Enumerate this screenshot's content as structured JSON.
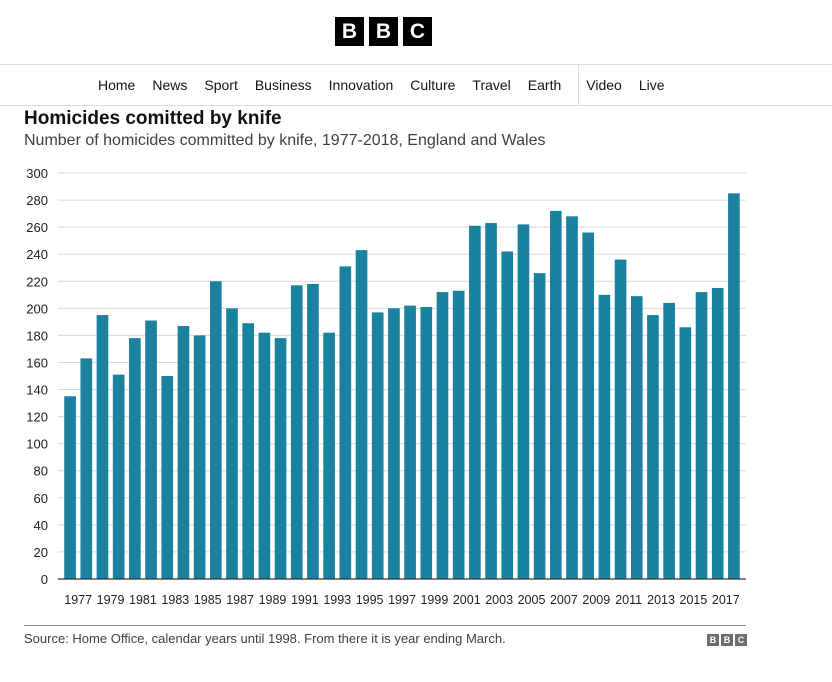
{
  "header": {
    "logo_letters": [
      "B",
      "B",
      "C"
    ],
    "nav": {
      "items": [
        "Home",
        "News",
        "Sport",
        "Business",
        "Innovation",
        "Culture",
        "Travel",
        "Earth"
      ],
      "items_after_separator": [
        "Video",
        "Live"
      ]
    }
  },
  "chart_data": {
    "type": "bar",
    "title": "Homicides comitted by knife",
    "subtitle": "Number of homicides committed by knife, 1977-2018, England and Wales",
    "xlabel": "",
    "ylabel": "",
    "ylim": [
      0,
      300
    ],
    "yticks": [
      0,
      20,
      40,
      60,
      80,
      100,
      120,
      140,
      160,
      180,
      200,
      220,
      240,
      260,
      280,
      300
    ],
    "grid": true,
    "bar_color": "#1a819f",
    "categories": [
      "1977",
      "1978",
      "1979",
      "1980",
      "1981",
      "1982",
      "1983",
      "1984",
      "1985",
      "1986",
      "1987",
      "1988",
      "1989",
      "1990",
      "1991",
      "1992",
      "1993",
      "1994",
      "1995",
      "1996",
      "1997",
      "1998",
      "1999",
      "2000",
      "2001",
      "2002",
      "2003",
      "2004",
      "2005",
      "2006",
      "2007",
      "2008",
      "2009",
      "2010",
      "2011",
      "2012",
      "2013",
      "2014",
      "2015",
      "2016",
      "2017",
      "2018"
    ],
    "x_tick_labels": [
      "1977",
      "1979",
      "1981",
      "1983",
      "1985",
      "1987",
      "1989",
      "1991",
      "1993",
      "1995",
      "1997",
      "1999",
      "2001",
      "2003",
      "2005",
      "2007",
      "2009",
      "2011",
      "2013",
      "2015",
      "2017"
    ],
    "values": [
      135,
      163,
      195,
      151,
      178,
      191,
      150,
      187,
      180,
      220,
      200,
      189,
      182,
      178,
      217,
      218,
      182,
      231,
      243,
      197,
      200,
      202,
      201,
      212,
      213,
      261,
      263,
      242,
      262,
      226,
      272,
      268,
      256,
      210,
      236,
      209,
      195,
      204,
      186,
      212,
      215,
      285
    ]
  },
  "footer": {
    "source": "Source: Home Office, calendar years until 1998. From there it is year ending March.",
    "logo_letters": [
      "B",
      "B",
      "C"
    ]
  }
}
